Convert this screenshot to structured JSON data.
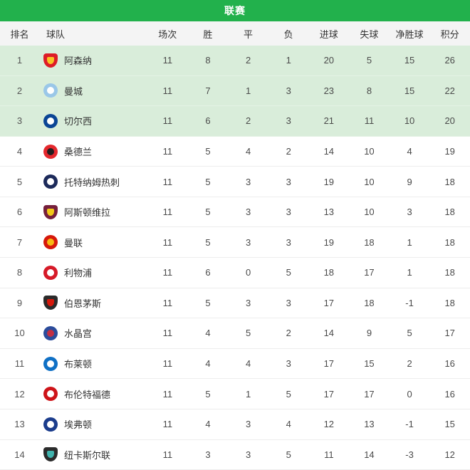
{
  "header": {
    "title": "联赛"
  },
  "colors": {
    "accent_green": "#22b14c",
    "highlight_row_bg": "#d9edda",
    "header_row_bg": "#f4f4f4",
    "row_divider": "#ededed",
    "text_primary": "#333333",
    "text_secondary": "#4a4a4a"
  },
  "table": {
    "columns": [
      "排名",
      "球队",
      "场次",
      "胜",
      "平",
      "负",
      "进球",
      "失球",
      "净胜球",
      "积分"
    ],
    "rows": [
      {
        "rank": 1,
        "team": "阿森纳",
        "logo": "arsenal-crest-icon",
        "logo_shape": "shield",
        "logo_colors": [
          "#dd1c27",
          "#f9c324"
        ],
        "played": 11,
        "win": 8,
        "draw": 2,
        "loss": 1,
        "gf": 20,
        "ga": 5,
        "gd": "15",
        "pts": 26,
        "highlight": true
      },
      {
        "rank": 2,
        "team": "曼城",
        "logo": "man-city-crest-icon",
        "logo_shape": "circle",
        "logo_colors": [
          "#9ac7e8",
          "#ffffff"
        ],
        "played": 11,
        "win": 7,
        "draw": 1,
        "loss": 3,
        "gf": 23,
        "ga": 8,
        "gd": "15",
        "pts": 22,
        "highlight": true
      },
      {
        "rank": 3,
        "team": "切尔西",
        "logo": "chelsea-crest-icon",
        "logo_shape": "circle",
        "logo_colors": [
          "#0a4595",
          "#ffffff"
        ],
        "played": 11,
        "win": 6,
        "draw": 2,
        "loss": 3,
        "gf": 21,
        "ga": 11,
        "gd": "10",
        "pts": 20,
        "highlight": true
      },
      {
        "rank": 4,
        "team": "桑德兰",
        "logo": "sunderland-crest-icon",
        "logo_shape": "circle",
        "logo_colors": [
          "#e4282d",
          "#211e1f"
        ],
        "played": 11,
        "win": 5,
        "draw": 4,
        "loss": 2,
        "gf": 14,
        "ga": 10,
        "gd": "4",
        "pts": 19,
        "highlight": false
      },
      {
        "rank": 5,
        "team": "托特纳姆热刺",
        "logo": "tottenham-crest-icon",
        "logo_shape": "circle",
        "logo_colors": [
          "#1c2a5a",
          "#ffffff"
        ],
        "played": 11,
        "win": 5,
        "draw": 3,
        "loss": 3,
        "gf": 19,
        "ga": 10,
        "gd": "9",
        "pts": 18,
        "highlight": false
      },
      {
        "rank": 6,
        "team": "阿斯顿维拉",
        "logo": "aston-villa-crest-icon",
        "logo_shape": "shield",
        "logo_colors": [
          "#76203c",
          "#f3c918"
        ],
        "played": 11,
        "win": 5,
        "draw": 3,
        "loss": 3,
        "gf": 13,
        "ga": 10,
        "gd": "3",
        "pts": 18,
        "highlight": false
      },
      {
        "rank": 7,
        "team": "曼联",
        "logo": "man-united-crest-icon",
        "logo_shape": "circle",
        "logo_colors": [
          "#d6180b",
          "#f8b912"
        ],
        "played": 11,
        "win": 5,
        "draw": 3,
        "loss": 3,
        "gf": 19,
        "ga": 18,
        "gd": "1",
        "pts": 18,
        "highlight": false
      },
      {
        "rank": 8,
        "team": "利物浦",
        "logo": "liverpool-crest-icon",
        "logo_shape": "circle",
        "logo_colors": [
          "#d61a28",
          "#ffffff"
        ],
        "played": 11,
        "win": 6,
        "draw": 0,
        "loss": 5,
        "gf": 18,
        "ga": 17,
        "gd": "1",
        "pts": 18,
        "highlight": false
      },
      {
        "rank": 9,
        "team": "伯恩茅斯",
        "logo": "bournemouth-crest-icon",
        "logo_shape": "shield",
        "logo_colors": [
          "#2b2b2b",
          "#d6180b"
        ],
        "played": 11,
        "win": 5,
        "draw": 3,
        "loss": 3,
        "gf": 17,
        "ga": 18,
        "gd": "-1",
        "pts": 18,
        "highlight": false
      },
      {
        "rank": 10,
        "team": "水晶宫",
        "logo": "crystal-palace-crest-icon",
        "logo_shape": "circle",
        "logo_colors": [
          "#2b4c9b",
          "#c32f43"
        ],
        "played": 11,
        "win": 4,
        "draw": 5,
        "loss": 2,
        "gf": 14,
        "ga": 9,
        "gd": "5",
        "pts": 17,
        "highlight": false
      },
      {
        "rank": 11,
        "team": "布莱顿",
        "logo": "brighton-crest-icon",
        "logo_shape": "circle",
        "logo_colors": [
          "#0f70c5",
          "#ffffff"
        ],
        "played": 11,
        "win": 4,
        "draw": 4,
        "loss": 3,
        "gf": 17,
        "ga": 15,
        "gd": "2",
        "pts": 16,
        "highlight": false
      },
      {
        "rank": 12,
        "team": "布伦特福德",
        "logo": "brentford-crest-icon",
        "logo_shape": "circle",
        "logo_colors": [
          "#ce1419",
          "#ffffff"
        ],
        "played": 11,
        "win": 5,
        "draw": 1,
        "loss": 5,
        "gf": 17,
        "ga": 17,
        "gd": "0",
        "pts": 16,
        "highlight": false
      },
      {
        "rank": 13,
        "team": "埃弗顿",
        "logo": "everton-crest-icon",
        "logo_shape": "circle",
        "logo_colors": [
          "#1b3c8c",
          "#ffffff"
        ],
        "played": 11,
        "win": 4,
        "draw": 3,
        "loss": 4,
        "gf": 12,
        "ga": 13,
        "gd": "-1",
        "pts": 15,
        "highlight": false
      },
      {
        "rank": 14,
        "team": "纽卡斯尔联",
        "logo": "newcastle-crest-icon",
        "logo_shape": "shield",
        "logo_colors": [
          "#2b2b2b",
          "#3fb3ad"
        ],
        "played": 11,
        "win": 3,
        "draw": 3,
        "loss": 5,
        "gf": 11,
        "ga": 14,
        "gd": "-3",
        "pts": 12,
        "highlight": false
      }
    ]
  }
}
